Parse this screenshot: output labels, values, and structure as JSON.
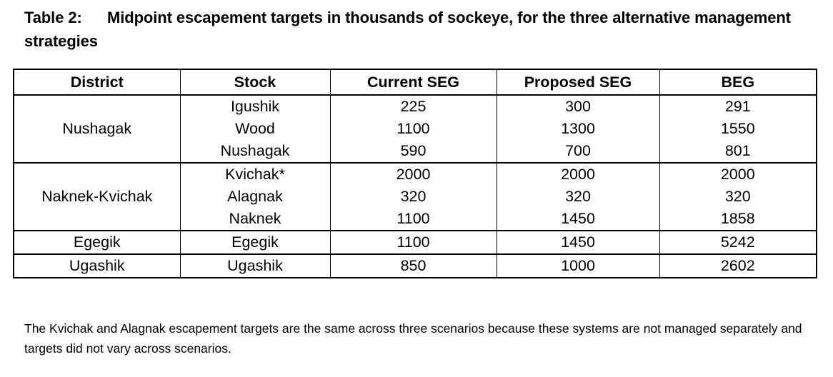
{
  "caption": {
    "label": "Table 2:",
    "text": "Midpoint escapement targets in thousands of sockeye, for the three alternative management strategies"
  },
  "table": {
    "headers": {
      "district": "District",
      "stock": "Stock",
      "current": "Current SEG",
      "proposed": "Proposed SEG",
      "beg": "BEG"
    },
    "groups": [
      {
        "district": "Nushagak",
        "rows": [
          {
            "stock": "Igushik",
            "current": "225",
            "proposed": "300",
            "beg": "291"
          },
          {
            "stock": "Wood",
            "current": "1100",
            "proposed": "1300",
            "beg": "1550"
          },
          {
            "stock": "Nushagak",
            "current": "590",
            "proposed": "700",
            "beg": "801"
          }
        ]
      },
      {
        "district": "Naknek-Kvichak",
        "rows": [
          {
            "stock": "Kvichak*",
            "current": "2000",
            "proposed": "2000",
            "beg": "2000"
          },
          {
            "stock": "Alagnak",
            "current": "320",
            "proposed": "320",
            "beg": "320"
          },
          {
            "stock": "Naknek",
            "current": "1100",
            "proposed": "1450",
            "beg": "1858"
          }
        ]
      },
      {
        "district": "Egegik",
        "rows": [
          {
            "stock": "Egegik",
            "current": "1100",
            "proposed": "1450",
            "beg": "5242"
          }
        ]
      },
      {
        "district": "Ugashik",
        "rows": [
          {
            "stock": "Ugashik",
            "current": "850",
            "proposed": "1000",
            "beg": "2602"
          }
        ]
      }
    ]
  },
  "footnote": "The Kvichak and Alagnak escapement targets are the same across three scenarios because these systems are not managed separately and targets did not vary across scenarios."
}
